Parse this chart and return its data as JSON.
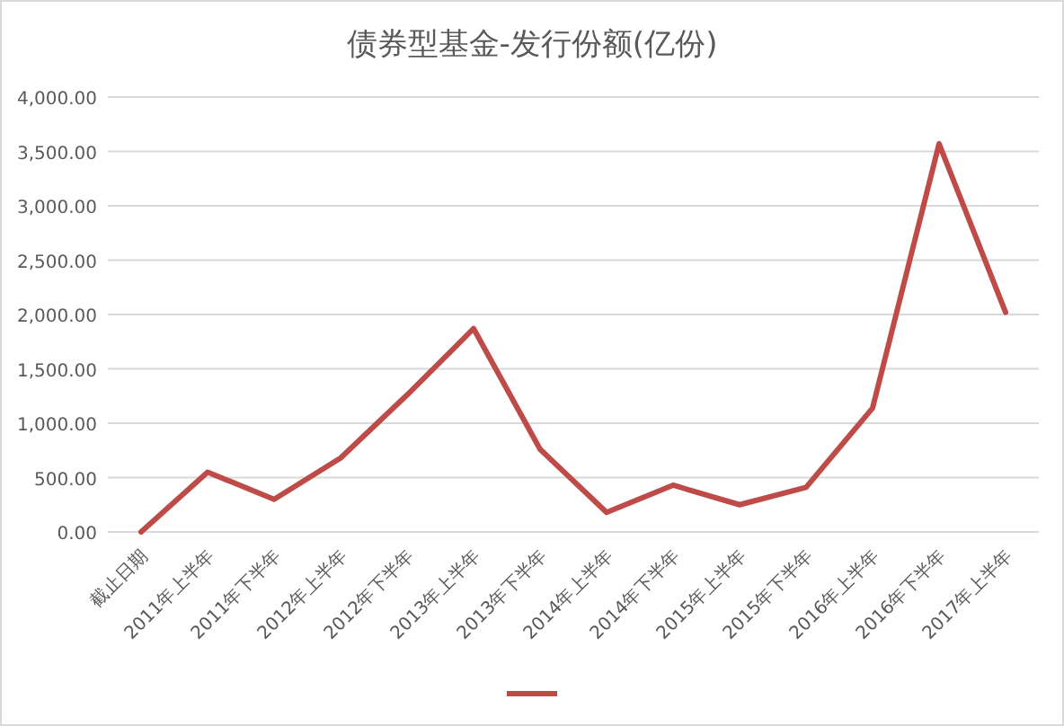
{
  "chart_data": {
    "type": "line",
    "title": "债券型基金-发行份额(亿份)",
    "categories": [
      "截止日期",
      "2011年上半年",
      "2011年下半年",
      "2012年上半年",
      "2012年下半年",
      "2013年上半年",
      "2013年下半年",
      "2014年上半年",
      "2014年下半年",
      "2015年上半年",
      "2015年下半年",
      "2016年上半年",
      "2016年下半年",
      "2017年上半年"
    ],
    "series": [
      {
        "color": "#be4b48",
        "values": [
          0,
          550,
          300,
          680,
          1260,
          1870,
          760,
          180,
          430,
          250,
          410,
          1140,
          3570,
          2020
        ]
      }
    ],
    "ylim": [
      0,
      4000
    ],
    "yticks": [
      {
        "value": 0,
        "label": "0.00"
      },
      {
        "value": 500,
        "label": "500.00"
      },
      {
        "value": 1000,
        "label": "1,000.00"
      },
      {
        "value": 1500,
        "label": "1,500.00"
      },
      {
        "value": 2000,
        "label": "2,000.00"
      },
      {
        "value": 2500,
        "label": "2,500.00"
      },
      {
        "value": 3000,
        "label": "3,000.00"
      },
      {
        "value": 3500,
        "label": "3,500.00"
      },
      {
        "value": 4000,
        "label": "4,000.00"
      }
    ],
    "grid": "y",
    "marker": "none",
    "line_style": "solid"
  }
}
